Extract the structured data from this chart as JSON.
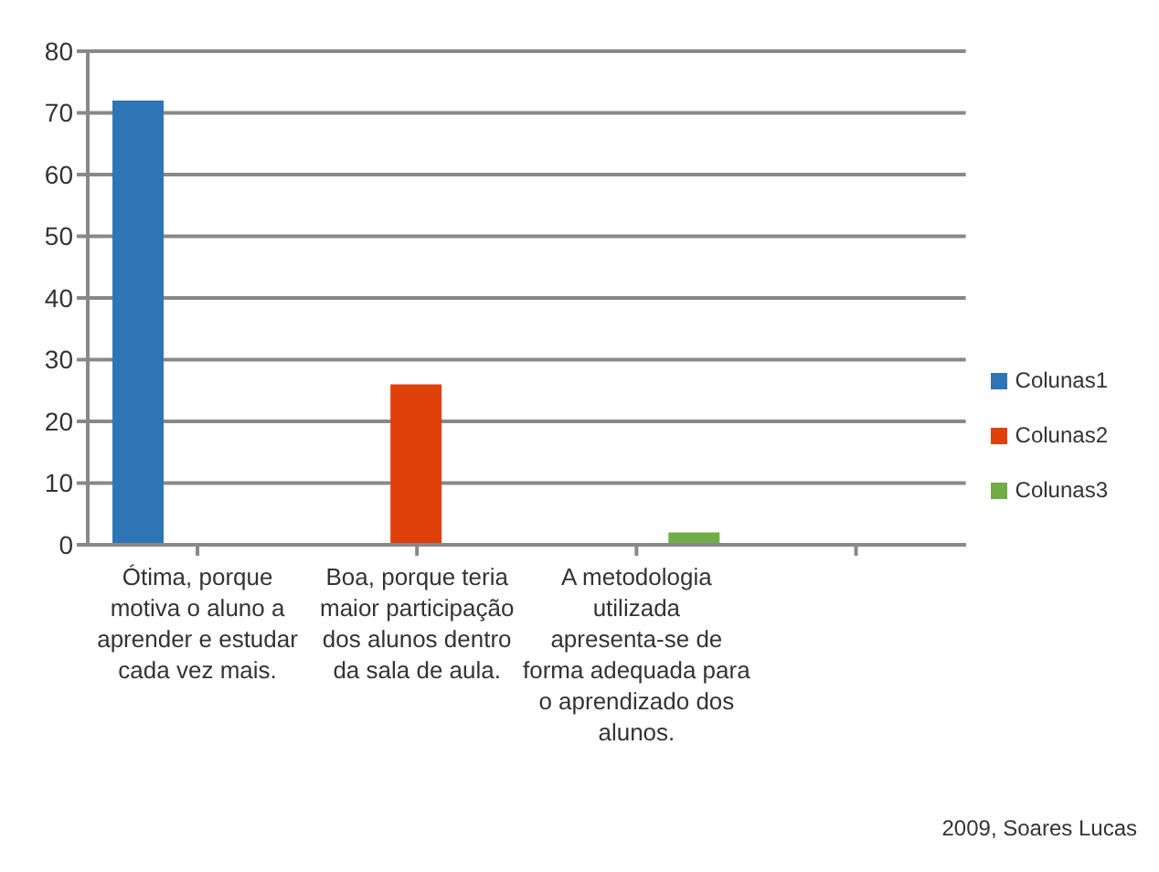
{
  "chart_data": {
    "type": "bar",
    "categories": [
      "Ótima, porque motiva o aluno a aprender e estudar cada vez mais.",
      "Boa, porque teria maior participação dos alunos dentro da sala de aula.",
      "A metodologia utilizada apresenta-se de forma adequada para o aprendizado dos alunos.",
      null
    ],
    "series": [
      {
        "name": "Colunas1",
        "color": "#2e75b6",
        "values": [
          72,
          null,
          null,
          null
        ]
      },
      {
        "name": "Colunas2",
        "color": "#e0400a",
        "values": [
          null,
          26,
          null,
          null
        ]
      },
      {
        "name": "Colunas3",
        "color": "#70ad47",
        "values": [
          null,
          null,
          2,
          null
        ]
      }
    ],
    "ylim": [
      0,
      80
    ],
    "yticks": [
      0,
      10,
      20,
      30,
      40,
      50,
      60,
      70,
      80
    ],
    "grid": "y",
    "legend": "right",
    "annotations": [
      "2009, Soares Lucas"
    ]
  }
}
